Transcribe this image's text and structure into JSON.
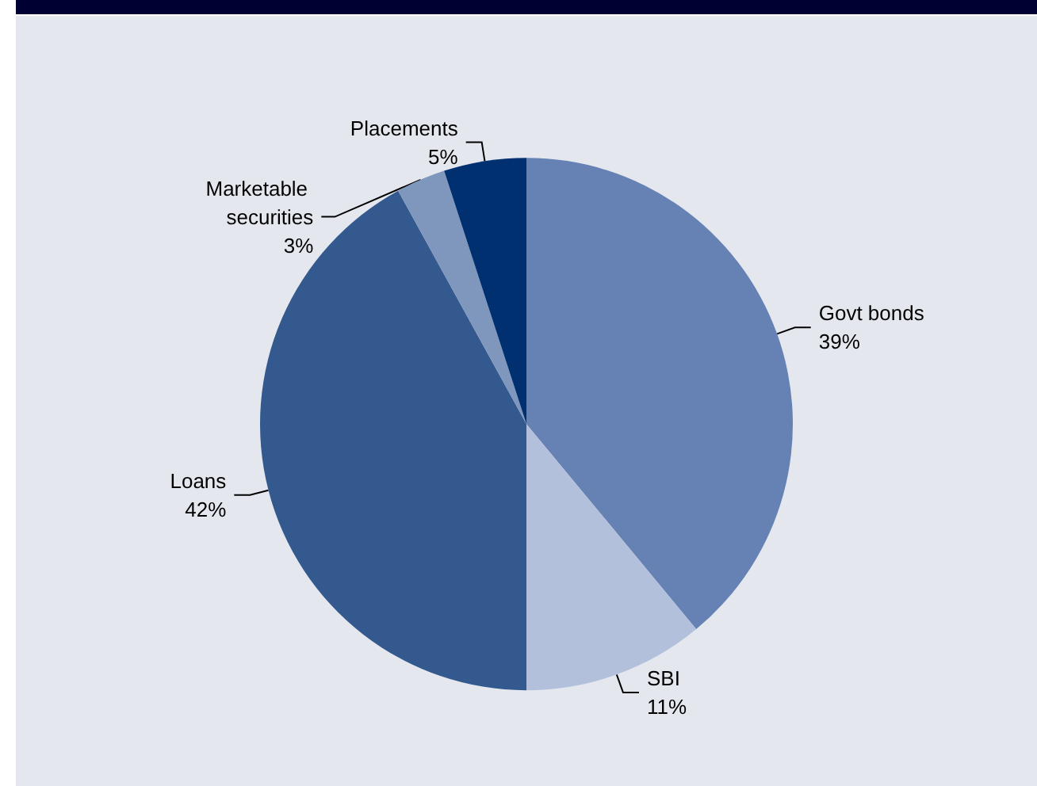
{
  "chart_data": {
    "type": "pie",
    "categories": [
      "Govt bonds",
      "SBI",
      "Loans",
      "Marketable securities",
      "Placements"
    ],
    "values": [
      39,
      11,
      42,
      3,
      5
    ],
    "value_labels": [
      "39%",
      "11%",
      "42%",
      "3%",
      "5%"
    ],
    "colors": [
      "#6681b3",
      "#b3c0db",
      "#34598f",
      "#7f96bd",
      "#003070"
    ]
  }
}
